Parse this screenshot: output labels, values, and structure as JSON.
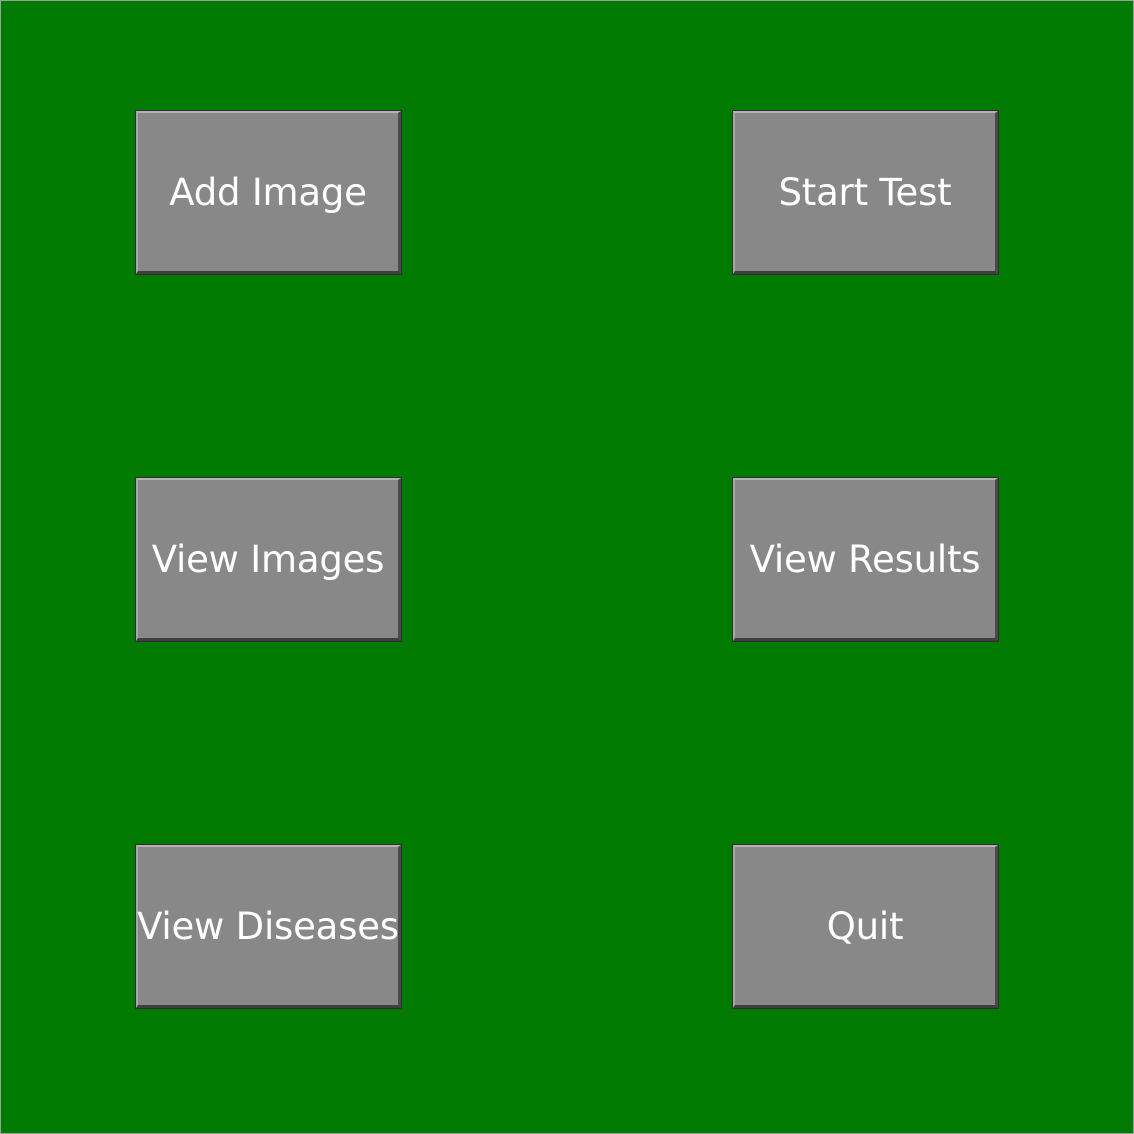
{
  "colors": {
    "background": "#007a00",
    "button": "#888888",
    "button_text": "#ffffff"
  },
  "menu": {
    "add_image": "Add Image",
    "start_test": "Start Test",
    "view_images": "View Images",
    "view_results": "View Results",
    "view_diseases": "View Diseases",
    "quit": "Quit"
  }
}
